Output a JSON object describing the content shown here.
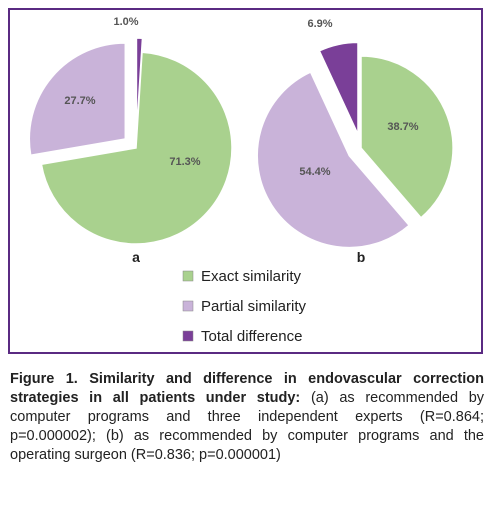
{
  "caption": {
    "title": "Figure 1. Similarity and difference in endovascular correction strategies in all patients under study:",
    "body": "(a) as recommended by computer programs and three independent experts (R=0.864; p=0.000002); (b) as recommended by computer programs and the operating surgeon (R=0.836; p=0.000001)"
  },
  "colors": {
    "exact": "#a9d18e",
    "partial": "#c9b3d9",
    "total": "#7a3f98",
    "stroke": "#ffffff",
    "border": "#5a2a82"
  },
  "chart_data": [
    {
      "type": "pie",
      "label": "a",
      "slices": [
        {
          "name": "Exact similarity",
          "value": 71.3,
          "label": "71.3%",
          "color": "#a9d18e"
        },
        {
          "name": "Partial similarity",
          "value": 27.7,
          "label": "27.7%",
          "color": "#c9b3d9"
        },
        {
          "name": "Total difference",
          "value": 1.0,
          "label": "1.0%",
          "color": "#7a3f98"
        }
      ]
    },
    {
      "type": "pie",
      "label": "b",
      "slices": [
        {
          "name": "Exact similarity",
          "value": 38.7,
          "label": "38.7%",
          "color": "#a9d18e"
        },
        {
          "name": "Partial similarity",
          "value": 54.4,
          "label": "54.4%",
          "color": "#c9b3d9"
        },
        {
          "name": "Total difference",
          "value": 6.9,
          "label": "6.9%",
          "color": "#7a3f98"
        }
      ]
    }
  ],
  "legend": [
    {
      "name": "Exact similarity",
      "color": "#a9d18e"
    },
    {
      "name": "Partial similarity",
      "color": "#c9b3d9"
    },
    {
      "name": "Total difference",
      "color": "#7a3f98"
    }
  ]
}
